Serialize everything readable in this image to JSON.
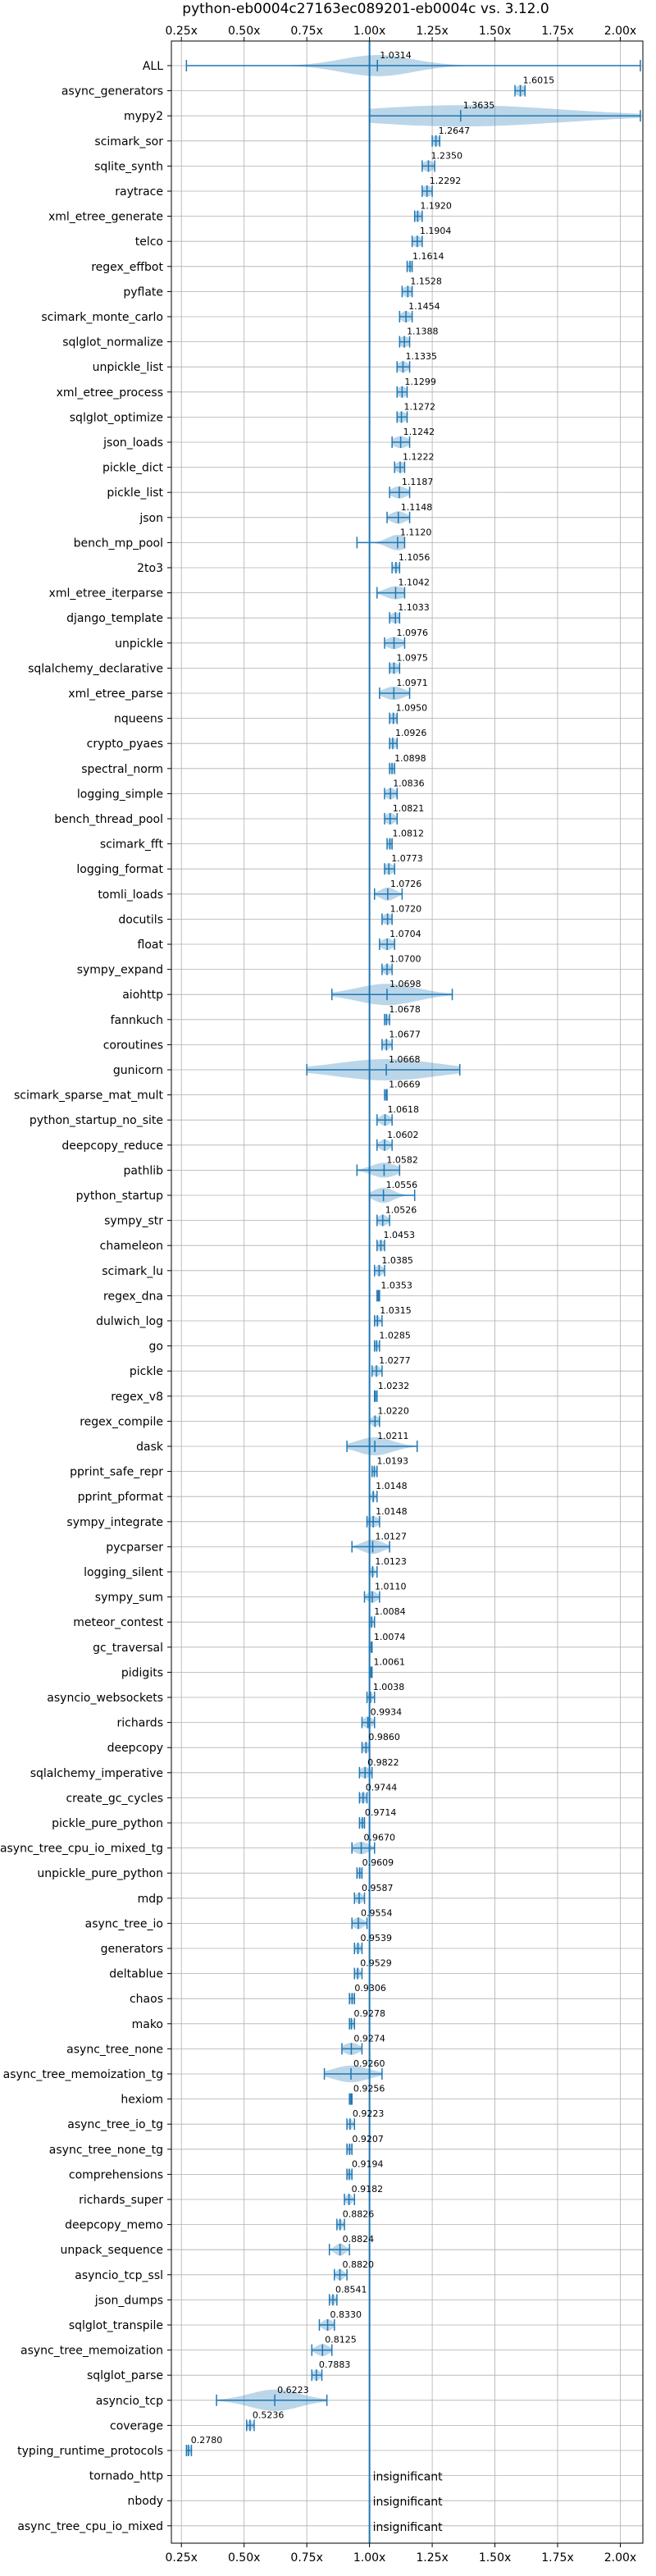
{
  "chart_data": {
    "type": "violin",
    "title": "python-eb0004c27163ec089201-eb0004c vs. 3.12.0",
    "xlabel": "",
    "ylabel": "",
    "xlim": [
      0.21,
      2.09
    ],
    "xticks": [
      0.25,
      0.5,
      0.75,
      1.0,
      1.25,
      1.5,
      1.75,
      2.0
    ],
    "xtick_labels": [
      "0.25x",
      "0.50x",
      "0.75x",
      "1.00x",
      "1.25x",
      "1.50x",
      "1.75x",
      "2.00x"
    ],
    "reference_line": 1.0,
    "grid": true,
    "insignificant_label": "insignificant",
    "benchmarks": [
      {
        "name": "ALL",
        "label": "1.0314",
        "value": 1.0314,
        "min": 0.27,
        "max": 2.08,
        "spread": 0.14
      },
      {
        "name": "async_generators",
        "label": "1.6015",
        "value": 1.6015,
        "min": 1.58,
        "max": 1.62,
        "spread": 0.02
      },
      {
        "name": "mypy2",
        "label": "1.3635",
        "value": 1.3635,
        "min": 1.0,
        "max": 2.08,
        "spread": 0.4
      },
      {
        "name": "scimark_sor",
        "label": "1.2647",
        "value": 1.2647,
        "min": 1.25,
        "max": 1.28,
        "spread": 0.015
      },
      {
        "name": "sqlite_synth",
        "label": "1.2350",
        "value": 1.235,
        "min": 1.21,
        "max": 1.26,
        "spread": 0.02
      },
      {
        "name": "raytrace",
        "label": "1.2292",
        "value": 1.2292,
        "min": 1.21,
        "max": 1.25,
        "spread": 0.02
      },
      {
        "name": "xml_etree_generate",
        "label": "1.1920",
        "value": 1.192,
        "min": 1.18,
        "max": 1.21,
        "spread": 0.015
      },
      {
        "name": "telco",
        "label": "1.1904",
        "value": 1.1904,
        "min": 1.17,
        "max": 1.21,
        "spread": 0.02
      },
      {
        "name": "regex_effbot",
        "label": "1.1614",
        "value": 1.1614,
        "min": 1.15,
        "max": 1.17,
        "spread": 0.01
      },
      {
        "name": "pyflate",
        "label": "1.1528",
        "value": 1.1528,
        "min": 1.13,
        "max": 1.17,
        "spread": 0.02
      },
      {
        "name": "scimark_monte_carlo",
        "label": "1.1454",
        "value": 1.1454,
        "min": 1.12,
        "max": 1.17,
        "spread": 0.02
      },
      {
        "name": "sqlglot_normalize",
        "label": "1.1388",
        "value": 1.1388,
        "min": 1.12,
        "max": 1.16,
        "spread": 0.02
      },
      {
        "name": "unpickle_list",
        "label": "1.1335",
        "value": 1.1335,
        "min": 1.11,
        "max": 1.16,
        "spread": 0.02
      },
      {
        "name": "xml_etree_process",
        "label": "1.1299",
        "value": 1.1299,
        "min": 1.11,
        "max": 1.15,
        "spread": 0.02
      },
      {
        "name": "sqlglot_optimize",
        "label": "1.1272",
        "value": 1.1272,
        "min": 1.11,
        "max": 1.15,
        "spread": 0.02
      },
      {
        "name": "json_loads",
        "label": "1.1242",
        "value": 1.1242,
        "min": 1.09,
        "max": 1.16,
        "spread": 0.03
      },
      {
        "name": "pickle_dict",
        "label": "1.1222",
        "value": 1.1222,
        "min": 1.1,
        "max": 1.14,
        "spread": 0.02
      },
      {
        "name": "pickle_list",
        "label": "1.1187",
        "value": 1.1187,
        "min": 1.08,
        "max": 1.16,
        "spread": 0.03
      },
      {
        "name": "json",
        "label": "1.1148",
        "value": 1.1148,
        "min": 1.07,
        "max": 1.16,
        "spread": 0.03
      },
      {
        "name": "bench_mp_pool",
        "label": "1.1120",
        "value": 1.112,
        "min": 0.95,
        "max": 1.14,
        "spread": 0.04
      },
      {
        "name": "2to3",
        "label": "1.1056",
        "value": 1.1056,
        "min": 1.09,
        "max": 1.12,
        "spread": 0.01
      },
      {
        "name": "xml_etree_iterparse",
        "label": "1.1042",
        "value": 1.1042,
        "min": 1.03,
        "max": 1.14,
        "spread": 0.04
      },
      {
        "name": "django_template",
        "label": "1.1033",
        "value": 1.1033,
        "min": 1.08,
        "max": 1.12,
        "spread": 0.02
      },
      {
        "name": "unpickle",
        "label": "1.0976",
        "value": 1.0976,
        "min": 1.06,
        "max": 1.14,
        "spread": 0.03
      },
      {
        "name": "sqlalchemy_declarative",
        "label": "1.0975",
        "value": 1.0975,
        "min": 1.08,
        "max": 1.12,
        "spread": 0.02
      },
      {
        "name": "xml_etree_parse",
        "label": "1.0971",
        "value": 1.0971,
        "min": 1.04,
        "max": 1.16,
        "spread": 0.04
      },
      {
        "name": "nqueens",
        "label": "1.0950",
        "value": 1.095,
        "min": 1.08,
        "max": 1.11,
        "spread": 0.015
      },
      {
        "name": "crypto_pyaes",
        "label": "1.0926",
        "value": 1.0926,
        "min": 1.08,
        "max": 1.11,
        "spread": 0.015
      },
      {
        "name": "spectral_norm",
        "label": "1.0898",
        "value": 1.0898,
        "min": 1.08,
        "max": 1.1,
        "spread": 0.01
      },
      {
        "name": "logging_simple",
        "label": "1.0836",
        "value": 1.0836,
        "min": 1.06,
        "max": 1.11,
        "spread": 0.02
      },
      {
        "name": "bench_thread_pool",
        "label": "1.0821",
        "value": 1.0821,
        "min": 1.06,
        "max": 1.11,
        "spread": 0.02
      },
      {
        "name": "scimark_fft",
        "label": "1.0812",
        "value": 1.0812,
        "min": 1.07,
        "max": 1.09,
        "spread": 0.01
      },
      {
        "name": "logging_format",
        "label": "1.0773",
        "value": 1.0773,
        "min": 1.06,
        "max": 1.1,
        "spread": 0.02
      },
      {
        "name": "tomli_loads",
        "label": "1.0726",
        "value": 1.0726,
        "min": 1.02,
        "max": 1.13,
        "spread": 0.03
      },
      {
        "name": "docutils",
        "label": "1.0720",
        "value": 1.072,
        "min": 1.05,
        "max": 1.09,
        "spread": 0.02
      },
      {
        "name": "float",
        "label": "1.0704",
        "value": 1.0704,
        "min": 1.04,
        "max": 1.1,
        "spread": 0.025
      },
      {
        "name": "sympy_expand",
        "label": "1.0700",
        "value": 1.07,
        "min": 1.05,
        "max": 1.09,
        "spread": 0.015
      },
      {
        "name": "aiohttp",
        "label": "1.0698",
        "value": 1.0698,
        "min": 0.85,
        "max": 1.33,
        "spread": 0.12
      },
      {
        "name": "fannkuch",
        "label": "1.0678",
        "value": 1.0678,
        "min": 1.06,
        "max": 1.08,
        "spread": 0.01
      },
      {
        "name": "coroutines",
        "label": "1.0677",
        "value": 1.0677,
        "min": 1.05,
        "max": 1.09,
        "spread": 0.015
      },
      {
        "name": "gunicorn",
        "label": "1.0668",
        "value": 1.0668,
        "min": 0.75,
        "max": 1.36,
        "spread": 0.2
      },
      {
        "name": "scimark_sparse_mat_mult",
        "label": "1.0669",
        "value": 1.0669,
        "min": 1.06,
        "max": 1.07,
        "spread": 0.005
      },
      {
        "name": "python_startup_no_site",
        "label": "1.0618",
        "value": 1.0618,
        "min": 1.03,
        "max": 1.09,
        "spread": 0.02
      },
      {
        "name": "deepcopy_reduce",
        "label": "1.0602",
        "value": 1.0602,
        "min": 1.03,
        "max": 1.09,
        "spread": 0.02
      },
      {
        "name": "pathlib",
        "label": "1.0582",
        "value": 1.0582,
        "min": 0.95,
        "max": 1.12,
        "spread": 0.05
      },
      {
        "name": "python_startup",
        "label": "1.0556",
        "value": 1.0556,
        "min": 1.0,
        "max": 1.18,
        "spread": 0.04
      },
      {
        "name": "sympy_str",
        "label": "1.0526",
        "value": 1.0526,
        "min": 1.03,
        "max": 1.08,
        "spread": 0.02
      },
      {
        "name": "chameleon",
        "label": "1.0453",
        "value": 1.0453,
        "min": 1.03,
        "max": 1.06,
        "spread": 0.015
      },
      {
        "name": "scimark_lu",
        "label": "1.0385",
        "value": 1.0385,
        "min": 1.02,
        "max": 1.06,
        "spread": 0.015
      },
      {
        "name": "regex_dna",
        "label": "1.0353",
        "value": 1.0353,
        "min": 1.03,
        "max": 1.04,
        "spread": 0.008
      },
      {
        "name": "dulwich_log",
        "label": "1.0315",
        "value": 1.0315,
        "min": 1.02,
        "max": 1.05,
        "spread": 0.01
      },
      {
        "name": "go",
        "label": "1.0285",
        "value": 1.0285,
        "min": 1.02,
        "max": 1.04,
        "spread": 0.008
      },
      {
        "name": "pickle",
        "label": "1.0277",
        "value": 1.0277,
        "min": 1.01,
        "max": 1.05,
        "spread": 0.015
      },
      {
        "name": "regex_v8",
        "label": "1.0232",
        "value": 1.0232,
        "min": 1.02,
        "max": 1.03,
        "spread": 0.008
      },
      {
        "name": "regex_compile",
        "label": "1.0220",
        "value": 1.022,
        "min": 1.0,
        "max": 1.04,
        "spread": 0.015
      },
      {
        "name": "dask",
        "label": "1.0211",
        "value": 1.0211,
        "min": 0.91,
        "max": 1.19,
        "spread": 0.07
      },
      {
        "name": "pprint_safe_repr",
        "label": "1.0193",
        "value": 1.0193,
        "min": 1.01,
        "max": 1.03,
        "spread": 0.008
      },
      {
        "name": "pprint_pformat",
        "label": "1.0148",
        "value": 1.0148,
        "min": 1.0,
        "max": 1.03,
        "spread": 0.008
      },
      {
        "name": "sympy_integrate",
        "label": "1.0148",
        "value": 1.0148,
        "min": 0.99,
        "max": 1.04,
        "spread": 0.02
      },
      {
        "name": "pycparser",
        "label": "1.0127",
        "value": 1.0127,
        "min": 0.93,
        "max": 1.08,
        "spread": 0.04
      },
      {
        "name": "logging_silent",
        "label": "1.0123",
        "value": 1.0123,
        "min": 1.0,
        "max": 1.03,
        "spread": 0.008
      },
      {
        "name": "sympy_sum",
        "label": "1.0110",
        "value": 1.011,
        "min": 0.98,
        "max": 1.04,
        "spread": 0.02
      },
      {
        "name": "meteor_contest",
        "label": "1.0084",
        "value": 1.0084,
        "min": 1.0,
        "max": 1.02,
        "spread": 0.008
      },
      {
        "name": "gc_traversal",
        "label": "1.0074",
        "value": 1.0074,
        "min": 1.0,
        "max": 1.01,
        "spread": 0.006
      },
      {
        "name": "pidigits",
        "label": "1.0061",
        "value": 1.0061,
        "min": 1.0,
        "max": 1.01,
        "spread": 0.006
      },
      {
        "name": "asyncio_websockets",
        "label": "1.0038",
        "value": 1.0038,
        "min": 0.99,
        "max": 1.02,
        "spread": 0.008
      },
      {
        "name": "richards",
        "label": "0.9934",
        "value": 0.9934,
        "min": 0.97,
        "max": 1.02,
        "spread": 0.02
      },
      {
        "name": "deepcopy",
        "label": "0.9860",
        "value": 0.986,
        "min": 0.97,
        "max": 1.0,
        "spread": 0.015
      },
      {
        "name": "sqlalchemy_imperative",
        "label": "0.9822",
        "value": 0.9822,
        "min": 0.96,
        "max": 1.01,
        "spread": 0.02
      },
      {
        "name": "create_gc_cycles",
        "label": "0.9744",
        "value": 0.9744,
        "min": 0.96,
        "max": 0.99,
        "spread": 0.015
      },
      {
        "name": "pickle_pure_python",
        "label": "0.9714",
        "value": 0.9714,
        "min": 0.96,
        "max": 0.98,
        "spread": 0.01
      },
      {
        "name": "async_tree_cpu_io_mixed_tg",
        "label": "0.9670",
        "value": 0.967,
        "min": 0.93,
        "max": 1.02,
        "spread": 0.03
      },
      {
        "name": "unpickle_pure_python",
        "label": "0.9609",
        "value": 0.9609,
        "min": 0.95,
        "max": 0.97,
        "spread": 0.01
      },
      {
        "name": "mdp",
        "label": "0.9587",
        "value": 0.9587,
        "min": 0.94,
        "max": 0.98,
        "spread": 0.015
      },
      {
        "name": "async_tree_io",
        "label": "0.9554",
        "value": 0.9554,
        "min": 0.93,
        "max": 0.99,
        "spread": 0.02
      },
      {
        "name": "generators",
        "label": "0.9539",
        "value": 0.9539,
        "min": 0.94,
        "max": 0.97,
        "spread": 0.01
      },
      {
        "name": "deltablue",
        "label": "0.9529",
        "value": 0.9529,
        "min": 0.94,
        "max": 0.97,
        "spread": 0.01
      },
      {
        "name": "chaos",
        "label": "0.9306",
        "value": 0.9306,
        "min": 0.92,
        "max": 0.94,
        "spread": 0.01
      },
      {
        "name": "mako",
        "label": "0.9278",
        "value": 0.9278,
        "min": 0.92,
        "max": 0.94,
        "spread": 0.008
      },
      {
        "name": "async_tree_none",
        "label": "0.9274",
        "value": 0.9274,
        "min": 0.89,
        "max": 0.97,
        "spread": 0.03
      },
      {
        "name": "async_tree_memoization_tg",
        "label": "0.9260",
        "value": 0.926,
        "min": 0.82,
        "max": 1.05,
        "spread": 0.07
      },
      {
        "name": "hexiom",
        "label": "0.9256",
        "value": 0.9256,
        "min": 0.92,
        "max": 0.93,
        "spread": 0.005
      },
      {
        "name": "async_tree_io_tg",
        "label": "0.9223",
        "value": 0.9223,
        "min": 0.91,
        "max": 0.94,
        "spread": 0.01
      },
      {
        "name": "async_tree_none_tg",
        "label": "0.9207",
        "value": 0.9207,
        "min": 0.91,
        "max": 0.93,
        "spread": 0.01
      },
      {
        "name": "comprehensions",
        "label": "0.9194",
        "value": 0.9194,
        "min": 0.91,
        "max": 0.93,
        "spread": 0.01
      },
      {
        "name": "richards_super",
        "label": "0.9182",
        "value": 0.9182,
        "min": 0.9,
        "max": 0.94,
        "spread": 0.012
      },
      {
        "name": "deepcopy_memo",
        "label": "0.8826",
        "value": 0.8826,
        "min": 0.87,
        "max": 0.9,
        "spread": 0.01
      },
      {
        "name": "unpack_sequence",
        "label": "0.8824",
        "value": 0.8824,
        "min": 0.84,
        "max": 0.92,
        "spread": 0.02
      },
      {
        "name": "asyncio_tcp_ssl",
        "label": "0.8820",
        "value": 0.882,
        "min": 0.86,
        "max": 0.91,
        "spread": 0.015
      },
      {
        "name": "json_dumps",
        "label": "0.8541",
        "value": 0.8541,
        "min": 0.84,
        "max": 0.87,
        "spread": 0.01
      },
      {
        "name": "sqlglot_transpile",
        "label": "0.8330",
        "value": 0.833,
        "min": 0.8,
        "max": 0.86,
        "spread": 0.02
      },
      {
        "name": "async_tree_memoization",
        "label": "0.8125",
        "value": 0.8125,
        "min": 0.77,
        "max": 0.85,
        "spread": 0.025
      },
      {
        "name": "sqlglot_parse",
        "label": "0.7883",
        "value": 0.7883,
        "min": 0.77,
        "max": 0.81,
        "spread": 0.015
      },
      {
        "name": "asyncio_tcp",
        "label": "0.6223",
        "value": 0.6223,
        "min": 0.39,
        "max": 0.83,
        "spread": 0.1
      },
      {
        "name": "coverage",
        "label": "0.5236",
        "value": 0.5236,
        "min": 0.51,
        "max": 0.54,
        "spread": 0.01
      },
      {
        "name": "typing_runtime_protocols",
        "label": "0.2780",
        "value": 0.278,
        "min": 0.27,
        "max": 0.29,
        "spread": 0.01
      },
      {
        "name": "tornado_http",
        "label": "insignificant",
        "value": null
      },
      {
        "name": "nbody",
        "label": "insignificant",
        "value": null
      },
      {
        "name": "async_tree_cpu_io_mixed",
        "label": "insignificant",
        "value": null
      }
    ]
  },
  "colors": {
    "violin_fill": "#1f77b4",
    "marker": "#1f77b4",
    "grid": "#b0b0b0",
    "axis": "#000000"
  }
}
